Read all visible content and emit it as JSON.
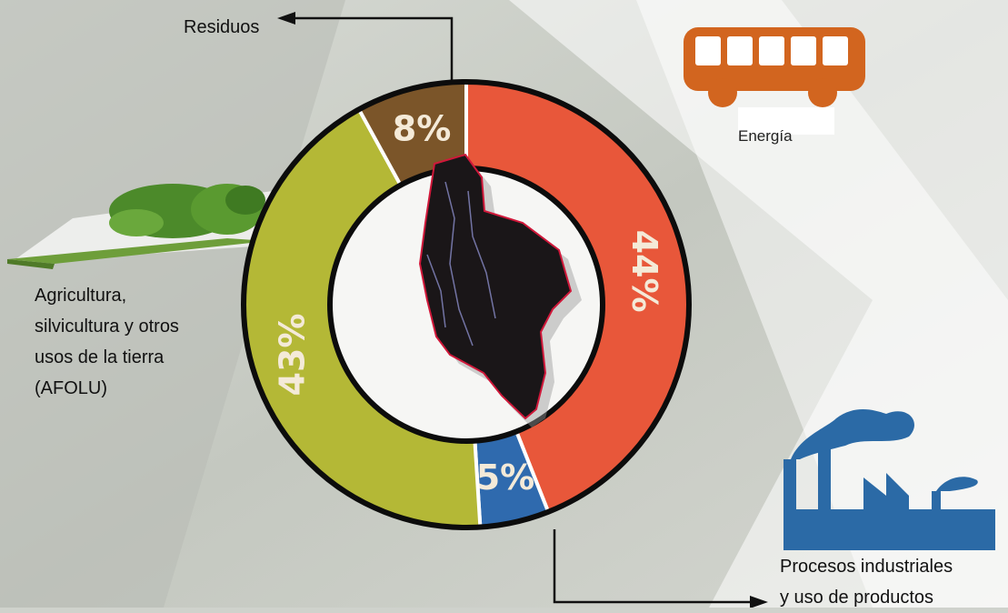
{
  "chart_data": {
    "type": "donut",
    "categories": [
      "Energía",
      "Procesos industriales\ny uso de productos",
      "Agricultura,\nsilvicultura y otros\nusos de la tierra\n(AFOLU)",
      "Residuos"
    ],
    "values": [
      44,
      5,
      43,
      8
    ],
    "value_labels": [
      "44%",
      "5%",
      "43%",
      "8%"
    ],
    "colors": [
      "#e8573a",
      "#2f6aae",
      "#b4b836",
      "#7b5529"
    ]
  }
}
